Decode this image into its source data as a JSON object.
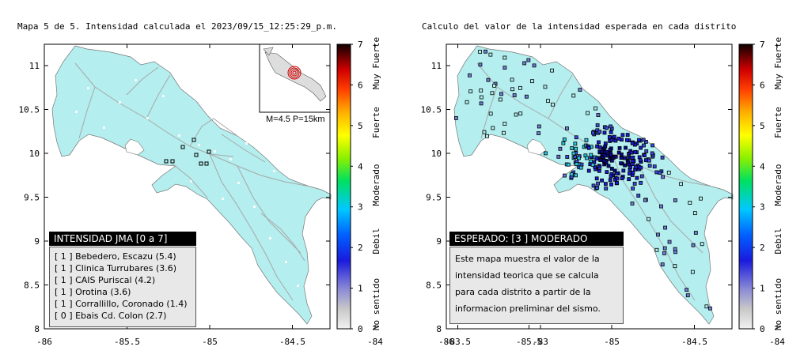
{
  "map1": {
    "title": "Mapa 5 de 5. Intensidad calculada el 2023/09/15_12:25:29_p.m.",
    "inset_caption": "M=4.5 P=15km",
    "legend_title": "INTENSIDAD JMA [0 a 7]",
    "legend_items": [
      "[ 1 ]  Bebedero, Escazu (5.4)",
      "[ 1 ]  Clinica Turrubares (3.6)",
      "[ 1 ]  CAIS Puriscal (4.2)",
      "[ 1 ]  Orotina (3.6)",
      "[ 1 ]  Corrallillo, Coronado (1.4)",
      "[ 0 ]  Ebais Cd. Colon (2.7)"
    ]
  },
  "map2": {
    "title": "Calculo del valor de la intensidad esperada en cada distrito",
    "legend_title": "ESPERADO: [3 ] MODERADO",
    "legend_text": "Este mapa muestra el valor de la intensidad teorica que se calcula para cada distrito a partir de la informacion preliminar del sismo."
  },
  "axes": {
    "x_ticks": [
      "-86",
      "-85.5",
      "-85",
      "-84.5",
      "-84",
      "-83.5",
      "-83"
    ],
    "y_ticks": [
      "8",
      "8.5",
      "9",
      "9.5",
      "10",
      "10.5",
      "11"
    ]
  },
  "colorbar": {
    "ticks": [
      "0",
      "1",
      "2",
      "3",
      "4",
      "5",
      "6",
      "7"
    ],
    "labels": [
      "No sentido",
      "Debil",
      "Moderado",
      "Fuerte",
      "Muy Fuerte"
    ]
  },
  "colors": {
    "land": "#b4eeee",
    "sea": "#ffffff",
    "road": "#a8a8a8",
    "station": "#fafafa"
  }
}
